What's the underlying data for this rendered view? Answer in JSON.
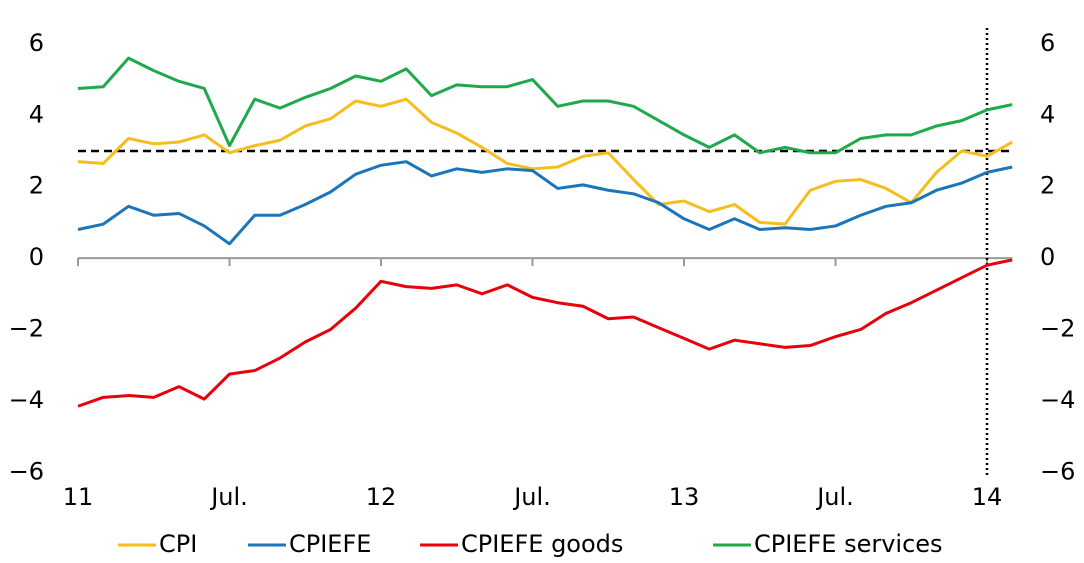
{
  "chart_data": {
    "type": "line",
    "categories": [
      "11",
      null,
      null,
      null,
      null,
      null,
      "Jul.",
      null,
      null,
      null,
      null,
      null,
      "12",
      null,
      null,
      null,
      null,
      null,
      "Jul.",
      null,
      null,
      null,
      null,
      null,
      "13",
      null,
      null,
      null,
      null,
      null,
      "Jul.",
      null,
      null,
      null,
      null,
      null,
      "14",
      null
    ],
    "series": [
      {
        "name": "CPI",
        "color": "#f5be1e",
        "values": [
          2.7,
          2.65,
          3.35,
          3.2,
          3.25,
          3.45,
          2.95,
          3.15,
          3.3,
          3.7,
          3.9,
          4.4,
          4.25,
          4.45,
          3.8,
          3.5,
          3.1,
          2.65,
          2.5,
          2.55,
          2.85,
          2.95,
          2.2,
          1.5,
          1.6,
          1.3,
          1.5,
          1.0,
          0.95,
          1.9,
          2.15,
          2.2,
          1.95,
          1.55,
          2.4,
          3.0,
          2.85,
          3.25
        ]
      },
      {
        "name": "CPIEFE",
        "color": "#1a75bb",
        "values": [
          0.8,
          0.95,
          1.45,
          1.2,
          1.25,
          0.9,
          0.4,
          1.2,
          1.2,
          1.5,
          1.85,
          2.35,
          2.6,
          2.7,
          2.3,
          2.5,
          2.4,
          2.5,
          2.45,
          1.95,
          2.05,
          1.9,
          1.8,
          1.55,
          1.1,
          0.8,
          1.1,
          0.8,
          0.85,
          0.8,
          0.9,
          1.2,
          1.45,
          1.55,
          1.9,
          2.1,
          2.4,
          2.55
        ]
      },
      {
        "name": "CPIEFE goods",
        "color": "#e8000b",
        "values": [
          -4.15,
          -3.9,
          -3.85,
          -3.9,
          -3.6,
          -3.95,
          -3.25,
          -3.15,
          -2.8,
          -2.35,
          -2.0,
          -1.4,
          -0.65,
          -0.8,
          -0.85,
          -0.75,
          -1.0,
          -0.75,
          -1.1,
          -1.25,
          -1.35,
          -1.7,
          -1.65,
          -1.95,
          -2.25,
          -2.55,
          -2.3,
          -2.4,
          -2.5,
          -2.45,
          -2.2,
          -2.0,
          -1.55,
          -1.25,
          -0.9,
          -0.55,
          -0.2,
          -0.05
        ]
      },
      {
        "name": "CPIEFE services",
        "color": "#1fa94a",
        "values": [
          4.75,
          4.8,
          5.6,
          5.25,
          4.95,
          4.75,
          3.15,
          4.45,
          4.2,
          4.5,
          4.75,
          5.1,
          4.95,
          5.3,
          4.55,
          4.85,
          4.8,
          4.8,
          5.0,
          4.25,
          4.4,
          4.4,
          4.25,
          3.85,
          3.45,
          3.1,
          3.45,
          2.95,
          3.1,
          2.95,
          2.95,
          3.35,
          3.45,
          3.45,
          3.7,
          3.85,
          4.15,
          4.3
        ]
      }
    ],
    "ylim": [
      -7,
      6.5
    ],
    "yticks": [
      {
        "value": -6,
        "label": "−6"
      },
      {
        "value": -4,
        "label": "−4"
      },
      {
        "value": -2,
        "label": "−2"
      },
      0,
      2,
      4,
      6
    ],
    "y2lim": [
      -7,
      6.5
    ],
    "y2ticks": [
      {
        "value": -6,
        "label": "−6"
      },
      {
        "value": -4,
        "label": "−4"
      },
      {
        "value": -2,
        "label": "−2"
      },
      0,
      2,
      4,
      6
    ],
    "hline": 3,
    "vline_category": 36,
    "legend": "bottom"
  }
}
